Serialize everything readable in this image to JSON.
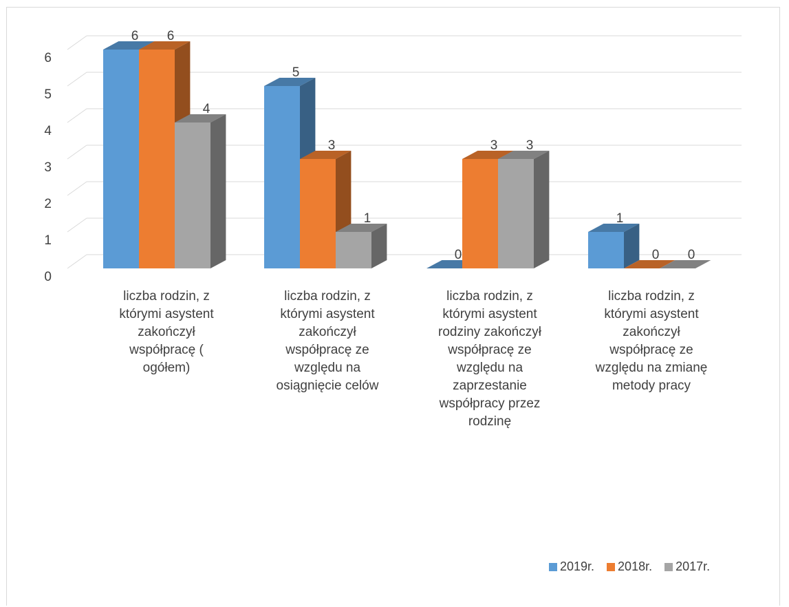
{
  "chart_data": {
    "type": "bar",
    "categories": [
      "liczba rodzin, z którymi asystent zakończył współpracę ( ogółem)",
      "liczba rodzin, z którymi asystent zakończył współpracę ze względu na osiągnięcie celów",
      "liczba rodzin, z którymi asystent rodziny zakończył współpracę ze względu na zaprzestanie współpracy przez rodzinę",
      "liczba rodzin, z którymi asystent zakończył współpracę ze względu na zmianę metody pracy"
    ],
    "category_lines": [
      [
        "liczba rodzin, z",
        "którymi asystent",
        "zakończył",
        "współpracę (",
        "ogółem)"
      ],
      [
        "liczba rodzin, z",
        "którymi asystent",
        "zakończył",
        "współpracę ze",
        "względu na",
        "osiągnięcie celów"
      ],
      [
        "liczba rodzin, z",
        "którymi asystent",
        "rodziny zakończył",
        "współpracę ze",
        "względu na",
        "zaprzestanie",
        "współpracy przez",
        "rodzinę"
      ],
      [
        "liczba rodzin, z",
        "którymi asystent",
        "zakończył",
        "współpracę ze",
        "względu na zmianę",
        "metody pracy"
      ]
    ],
    "series": [
      {
        "name": "2019r.",
        "values": [
          6,
          5,
          0,
          1
        ],
        "color": "#5b9bd5"
      },
      {
        "name": "2018r.",
        "values": [
          6,
          3,
          3,
          0
        ],
        "color": "#ed7d31"
      },
      {
        "name": "2017r.",
        "values": [
          4,
          1,
          3,
          0
        ],
        "color": "#a5a5a5"
      }
    ],
    "y_ticks": [
      "0",
      "1",
      "2",
      "3",
      "4",
      "5",
      "6"
    ],
    "ylim": [
      0,
      6.5
    ],
    "grid": true,
    "legend_position": "bottom-right",
    "three_d": true
  }
}
